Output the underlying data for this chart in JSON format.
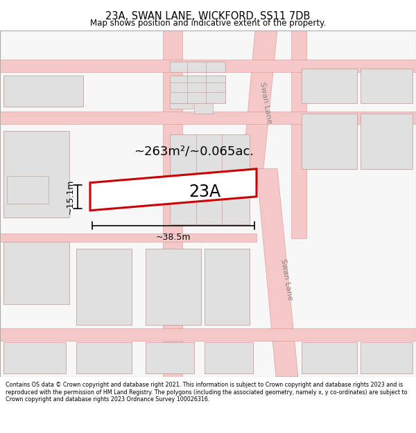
{
  "title": "23A, SWAN LANE, WICKFORD, SS11 7DB",
  "subtitle": "Map shows position and indicative extent of the property.",
  "footer": "Contains OS data © Crown copyright and database right 2021. This information is subject to Crown copyright and database rights 2023 and is reproduced with the permission of HM Land Registry. The polygons (including the associated geometry, namely x, y co-ordinates) are subject to Crown copyright and database rights 2023 Ordnance Survey 100026316.",
  "map_bg": "#f7f7f7",
  "road_color": "#f5c8c8",
  "road_edge": "#e09090",
  "building_fill": "#e0e0e0",
  "building_edge": "#c8a0a0",
  "highlight_fill": "#ffffff",
  "highlight_edge": "#cc0000",
  "area_text": "~263m²/~0.065ac.",
  "label_23A": "23A",
  "dim_width": "~38.5m",
  "dim_height": "~15.1m",
  "swan_lane_label": "Swan Lane",
  "swan_lane_label2": "Swan Lane"
}
